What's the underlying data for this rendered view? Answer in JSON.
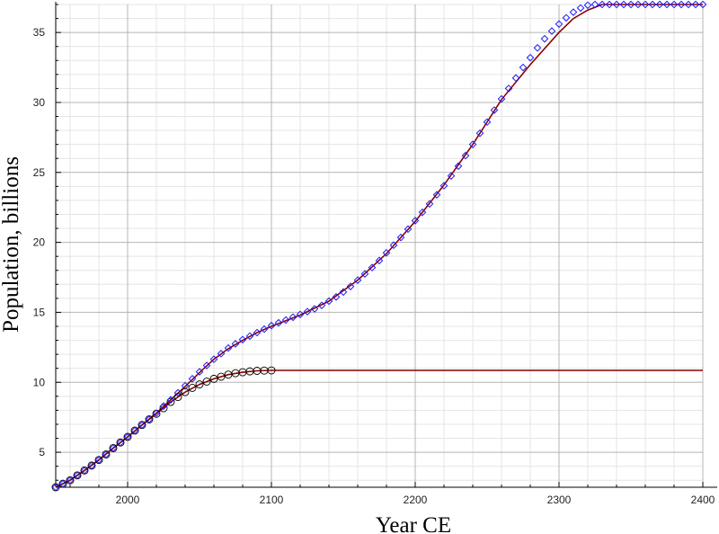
{
  "chart_data": {
    "type": "line",
    "xlabel": "Year CE",
    "ylabel": "Population, billions",
    "xlim": [
      1950,
      2400
    ],
    "ylim": [
      2.5,
      37
    ],
    "grid": true,
    "x_major_ticks": [
      2000,
      2100,
      2200,
      2300,
      2400
    ],
    "y_major_ticks": [
      5,
      10,
      15,
      20,
      25,
      30,
      35
    ],
    "series": [
      {
        "role": "fit-high",
        "style": "line",
        "color": "#8b0000",
        "x": [
          1950,
          1960,
          1970,
          1980,
          1990,
          2000,
          2010,
          2020,
          2030,
          2040,
          2050,
          2060,
          2070,
          2080,
          2090,
          2100,
          2120,
          2140,
          2160,
          2180,
          2200,
          2220,
          2240,
          2260,
          2280,
          2300,
          2310,
          2320,
          2330,
          2340,
          2400
        ],
        "values": [
          2.5,
          3.0,
          3.7,
          4.45,
          5.3,
          6.1,
          6.95,
          7.8,
          8.75,
          9.7,
          10.7,
          11.65,
          12.4,
          13.0,
          13.55,
          14.0,
          14.8,
          15.8,
          17.3,
          19.2,
          21.5,
          24.1,
          27.0,
          30.2,
          32.7,
          35.0,
          36.0,
          36.6,
          37.0,
          37.0,
          37.0
        ]
      },
      {
        "role": "fit-low",
        "style": "line",
        "color": "#8b0000",
        "x": [
          1950,
          1960,
          1970,
          1980,
          1990,
          2000,
          2010,
          2020,
          2030,
          2040,
          2050,
          2060,
          2070,
          2080,
          2090,
          2100,
          2400
        ],
        "values": [
          2.5,
          3.0,
          3.7,
          4.45,
          5.3,
          6.1,
          6.95,
          7.75,
          8.6,
          9.3,
          9.85,
          10.25,
          10.55,
          10.72,
          10.82,
          10.85,
          10.85
        ]
      },
      {
        "role": "markers-high",
        "style": "marker",
        "marker": "diamond",
        "color": "#1a1aff",
        "x": [
          2035,
          2040,
          2045,
          2050,
          2055,
          2060,
          2065,
          2070,
          2075,
          2080,
          2085,
          2090,
          2095,
          2100,
          2105,
          2110,
          2115,
          2120,
          2125,
          2130,
          2135,
          2140,
          2145,
          2150,
          2155,
          2160,
          2165,
          2170,
          2175,
          2180,
          2185,
          2190,
          2195,
          2200,
          2205,
          2210,
          2215,
          2220,
          2225,
          2230,
          2235,
          2240,
          2245,
          2250,
          2255,
          2260,
          2265,
          2270,
          2275,
          2280,
          2285,
          2290,
          2295,
          2300,
          2305,
          2310,
          2315,
          2320,
          2325,
          2330,
          2335,
          2340,
          2345,
          2350,
          2355,
          2360,
          2365,
          2370,
          2375,
          2380,
          2385,
          2390,
          2395,
          2400
        ],
        "values": [
          9.25,
          9.75,
          10.25,
          10.75,
          11.2,
          11.65,
          12.05,
          12.45,
          12.75,
          13.05,
          13.3,
          13.55,
          13.8,
          14.05,
          14.25,
          14.45,
          14.65,
          14.85,
          15.05,
          15.25,
          15.5,
          15.8,
          16.1,
          16.45,
          16.85,
          17.3,
          17.75,
          18.2,
          18.7,
          19.25,
          19.8,
          20.35,
          20.95,
          21.55,
          22.15,
          22.75,
          23.4,
          24.05,
          24.75,
          25.45,
          26.2,
          27.0,
          27.8,
          28.6,
          29.45,
          30.25,
          31.0,
          31.75,
          32.5,
          33.2,
          33.9,
          34.55,
          35.1,
          35.6,
          36.05,
          36.45,
          36.75,
          36.95,
          37.0,
          37.0,
          37.0,
          37.0,
          37.0,
          37.0,
          37.0,
          37.0,
          37.0,
          37.0,
          37.0,
          37.0,
          37.0,
          37.0,
          37.0,
          37.0
        ]
      },
      {
        "role": "markers-low",
        "style": "marker",
        "marker": "circle",
        "color": "#000000",
        "x": [
          1950,
          1955,
          1960,
          1965,
          1970,
          1975,
          1980,
          1985,
          1990,
          1995,
          2000,
          2005,
          2010,
          2015,
          2020,
          2025,
          2030,
          2035,
          2040,
          2045,
          2050,
          2055,
          2060,
          2065,
          2070,
          2075,
          2080,
          2085,
          2090,
          2095,
          2100
        ],
        "values": [
          2.5,
          2.75,
          3.0,
          3.35,
          3.7,
          4.05,
          4.45,
          4.85,
          5.3,
          5.7,
          6.1,
          6.55,
          6.95,
          7.35,
          7.75,
          8.15,
          8.6,
          8.95,
          9.3,
          9.6,
          9.85,
          10.05,
          10.25,
          10.4,
          10.55,
          10.65,
          10.72,
          10.78,
          10.82,
          10.84,
          10.85
        ]
      },
      {
        "role": "markers-early-diamond",
        "style": "marker",
        "marker": "diamond",
        "color": "#1a1aff",
        "x": [
          1950,
          1955,
          1960,
          1965,
          1970,
          1975,
          1980,
          1985,
          1990,
          1995,
          2000,
          2005,
          2010,
          2015,
          2020,
          2025,
          2030
        ],
        "values": [
          2.5,
          2.75,
          3.0,
          3.35,
          3.7,
          4.05,
          4.45,
          4.85,
          5.3,
          5.7,
          6.1,
          6.55,
          6.95,
          7.35,
          7.8,
          8.3,
          8.75
        ]
      }
    ]
  }
}
